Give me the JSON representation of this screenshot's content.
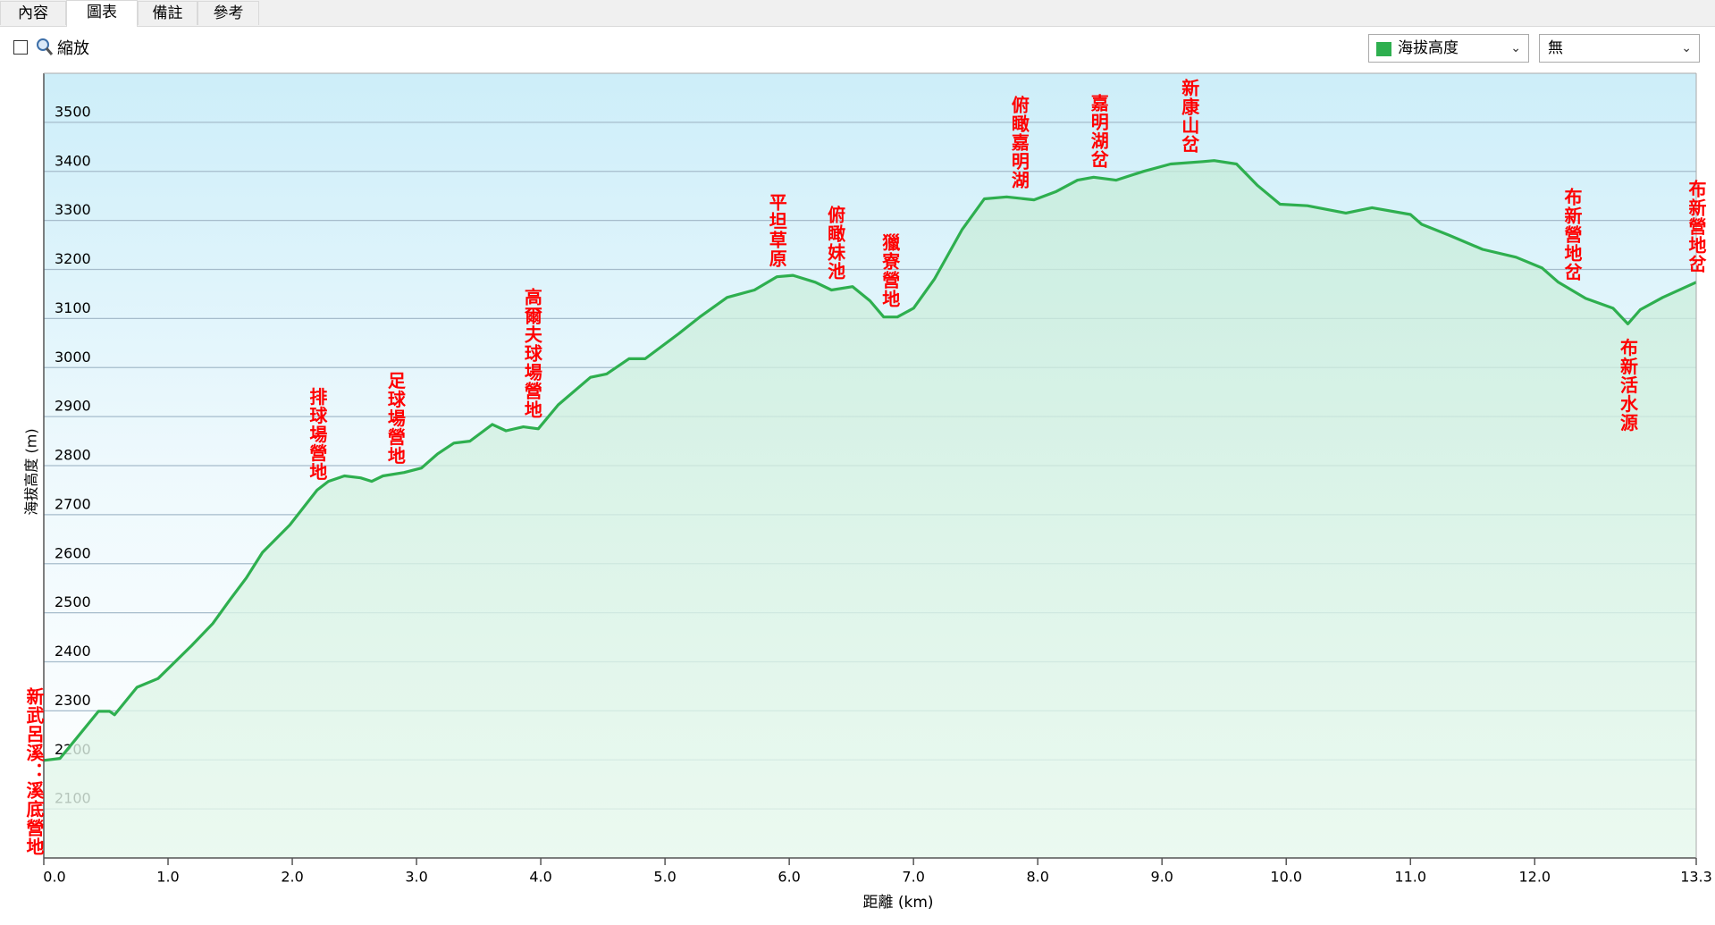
{
  "tabs": [
    "內容",
    "圖表",
    "備註",
    "參考"
  ],
  "zoom_label": "縮放",
  "compare_select": "無",
  "chart_data": {
    "type": "line",
    "xlabel": "距離 (km)",
    "ylabel": "海拔高度 (m)",
    "x": [
      0,
      0.13,
      0.26,
      0.44,
      0.53,
      0.57,
      0.75,
      0.92,
      1.19,
      1.36,
      1.5,
      1.63,
      1.76,
      1.98,
      2.2,
      2.29,
      2.42,
      2.55,
      2.64,
      2.73,
      2.9,
      3.04,
      3.17,
      3.3,
      3.43,
      3.61,
      3.72,
      3.86,
      3.98,
      4.14,
      4.4,
      4.53,
      4.71,
      4.84,
      5.11,
      5.28,
      5.5,
      5.72,
      5.9,
      6.03,
      6.21,
      6.34,
      6.51,
      6.65,
      6.76,
      6.87,
      7.0,
      7.17,
      7.39,
      7.57,
      7.75,
      7.97,
      8.15,
      8.32,
      8.45,
      8.63,
      8.85,
      9.07,
      9.33,
      9.42,
      9.6,
      9.77,
      9.95,
      10.17,
      10.48,
      10.69,
      11.0,
      11.09,
      11.31,
      11.58,
      11.85,
      12.06,
      12.19,
      12.41,
      12.63,
      12.75,
      12.85,
      13.03,
      13.3
    ],
    "series": [
      {
        "name": "海拔高度",
        "color": "#2eaf4f",
        "values": [
          2199,
          2203,
          2243,
          2299,
          2299,
          2292,
          2348,
          2366,
          2433,
          2478,
          2527,
          2571,
          2623,
          2679,
          2750,
          2768,
          2779,
          2775,
          2768,
          2779,
          2786,
          2795,
          2824,
          2846,
          2850,
          2884,
          2871,
          2879,
          2875,
          2924,
          2980,
          2987,
          3018,
          3018,
          3069,
          3103,
          3143,
          3158,
          3185,
          3188,
          3174,
          3158,
          3165,
          3136,
          3103,
          3103,
          3121,
          3181,
          3281,
          3344,
          3348,
          3342,
          3359,
          3382,
          3388,
          3382,
          3400,
          3415,
          3420,
          3422,
          3415,
          3371,
          3333,
          3330,
          3315,
          3326,
          3312,
          3292,
          3270,
          3241,
          3225,
          3203,
          3174,
          3141,
          3121,
          3089,
          3118,
          3143,
          3174
        ]
      }
    ],
    "xlim": [
      0,
      13.3
    ],
    "ylim": [
      2000,
      3600
    ],
    "xticks": [
      {
        "value": 0,
        "label": "0.0"
      },
      {
        "value": 1,
        "label": "1.0"
      },
      {
        "value": 2,
        "label": "2.0"
      },
      {
        "value": 3,
        "label": "3.0"
      },
      {
        "value": 4,
        "label": "4.0"
      },
      {
        "value": 5,
        "label": "5.0"
      },
      {
        "value": 6,
        "label": "6.0"
      },
      {
        "value": 7,
        "label": "7.0"
      },
      {
        "value": 8,
        "label": "8.0"
      },
      {
        "value": 9,
        "label": "9.0"
      },
      {
        "value": 10,
        "label": "10.0"
      },
      {
        "value": 11,
        "label": "11.0"
      },
      {
        "value": 12,
        "label": "12.0"
      },
      13.3
    ],
    "yticks": [
      2100,
      2200,
      2300,
      2400,
      2500,
      2600,
      2700,
      2800,
      2900,
      3000,
      3100,
      3200,
      3300,
      3400,
      3500
    ],
    "grid": true,
    "annotations": [
      {
        "text": "新武呂溪：溪底營地",
        "x": 0,
        "position": "bottom"
      },
      {
        "text": "排球場營地",
        "x": 2.2,
        "position": "above"
      },
      {
        "text": "足球場營地",
        "x": 2.83,
        "position": "above"
      },
      {
        "text": "高爾夫球場營地",
        "x": 3.93,
        "position": "above"
      },
      {
        "text": "平坦草原",
        "x": 5.9,
        "position": "above"
      },
      {
        "text": "俯瞰妹池",
        "x": 6.37,
        "position": "above"
      },
      {
        "text": "獵寮營地",
        "x": 6.81,
        "position": "above"
      },
      {
        "text": "俯瞰嘉明湖",
        "x": 7.85,
        "position": "above"
      },
      {
        "text": "嘉明湖岔",
        "x": 8.49,
        "position": "above"
      },
      {
        "text": "新康山岔",
        "x": 9.22,
        "position": "above"
      },
      {
        "text": "布新營地岔",
        "x": 12.3,
        "position": "above"
      },
      {
        "text": "布新活水源",
        "x": 12.75,
        "position": "below"
      },
      {
        "text": "布新營地岔",
        "x": 13.3,
        "position": "above"
      }
    ]
  }
}
